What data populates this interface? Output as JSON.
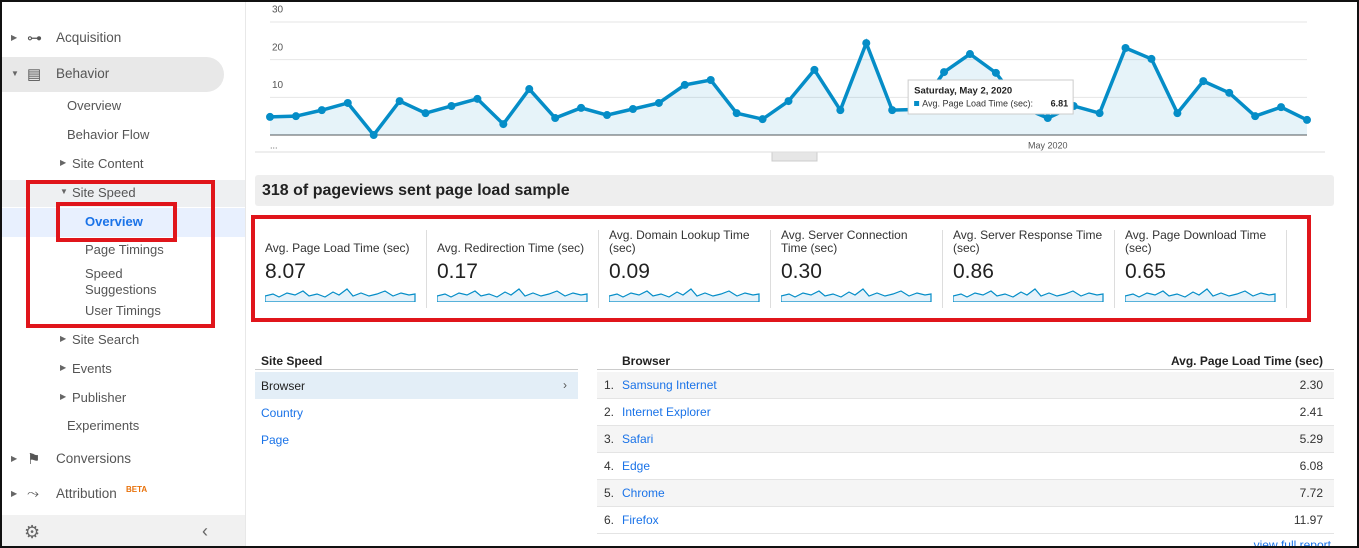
{
  "sidebar": {
    "items": [
      "Acquisition",
      "Behavior",
      "Overview",
      "Behavior Flow",
      "Site Content",
      "Site Speed",
      "Overview",
      "Page Timings",
      "Speed Suggestions",
      "User Timings",
      "Site Search",
      "Events",
      "Publisher",
      "Experiments",
      "Conversions",
      "Attribution"
    ],
    "badge": "BETA"
  },
  "chart_data": {
    "type": "line",
    "categories": [
      "...",
      null,
      null,
      null,
      null,
      null,
      null,
      null,
      null,
      null,
      null,
      null,
      null,
      null,
      null,
      null,
      null,
      null,
      null,
      null,
      null,
      null,
      null,
      null,
      null,
      null,
      null,
      null,
      null,
      null,
      "May 2020",
      null,
      null,
      null,
      null,
      null,
      null,
      null,
      null,
      null,
      null
    ],
    "series": [
      {
        "name": "Avg. Page Load Time (sec):",
        "color": "#058dc7",
        "values": [
          4.8,
          5.0,
          6.6,
          8.5,
          0,
          9.0,
          5.8,
          7.7,
          9.6,
          2.9,
          12.2,
          4.5,
          7.2,
          5.3,
          6.9,
          8.5,
          13.3,
          14.6,
          5.8,
          4.2,
          9.0,
          17.3,
          6.6,
          24.4,
          6.6,
          6.81,
          16.7,
          21.5,
          16.5,
          7.4,
          4.5,
          7.7,
          5.8,
          23.1,
          20.2,
          5.8,
          14.3,
          11.2,
          5.0,
          7.4,
          4.0
        ]
      }
    ],
    "ylim": [
      0,
      30
    ],
    "yticks": [
      10,
      20,
      30
    ],
    "grid": true,
    "tooltip": {
      "title": "Saturday, May 2, 2020",
      "index": 25
    }
  },
  "summary": {
    "title": "318 of pageviews sent page load sample",
    "metrics": [
      {
        "name": "Avg. Page Load Time (sec)",
        "value": "8.07"
      },
      {
        "name": "Avg. Redirection Time (sec)",
        "value": "0.17"
      },
      {
        "name": "Avg. Domain Lookup Time (sec)",
        "value": "0.09"
      },
      {
        "name": "Avg. Server Connection Time (sec)",
        "value": "0.30"
      },
      {
        "name": "Avg. Server Response Time (sec)",
        "value": "0.86"
      },
      {
        "name": "Avg. Page Download Time (sec)",
        "value": "0.65"
      }
    ]
  },
  "site_speed": {
    "header": "Site Speed",
    "items": [
      "Browser",
      "Country",
      "Page"
    ]
  },
  "browser_table": {
    "headers": [
      "Browser",
      "Avg. Page Load Time (sec)"
    ],
    "rows": [
      [
        "1.",
        "Samsung Internet",
        "2.30"
      ],
      [
        "2.",
        "Internet Explorer",
        "2.41"
      ],
      [
        "3.",
        "Safari",
        "5.29"
      ],
      [
        "4.",
        "Edge",
        "6.08"
      ],
      [
        "5.",
        "Chrome",
        "7.72"
      ],
      [
        "6.",
        "Firefox",
        "11.97"
      ]
    ],
    "footer_link": "view full report"
  }
}
